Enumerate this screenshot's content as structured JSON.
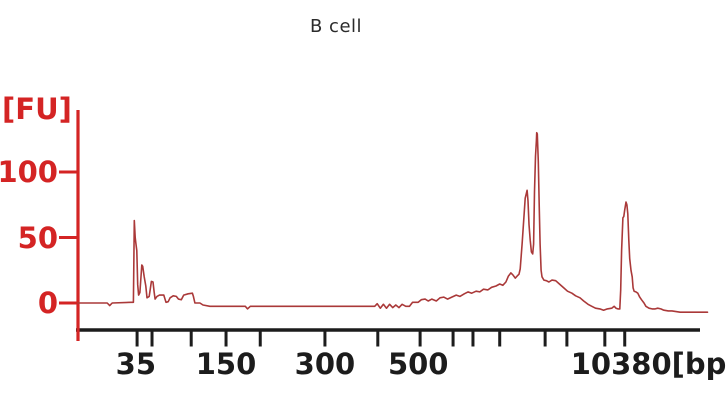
{
  "chart_data": {
    "type": "line",
    "title": "B cell",
    "ylabel": "[FU]",
    "x_axis_unit": "[bp]",
    "ylim": [
      -10,
      140
    ],
    "grid": false,
    "legend": "none",
    "y_ticks": [
      {
        "value": 0,
        "label": "0"
      },
      {
        "value": 50,
        "label": "50"
      },
      {
        "value": 100,
        "label": "100"
      }
    ],
    "x_ticks": [
      {
        "x": 0.095,
        "label": "35",
        "label_x": 0.093
      },
      {
        "x": 0.119
      },
      {
        "x": 0.182
      },
      {
        "x": 0.238,
        "label": "150",
        "label_x": 0.238
      },
      {
        "x": 0.293
      },
      {
        "x": 0.397,
        "label": "300",
        "label_x": 0.397
      },
      {
        "x": 0.482
      },
      {
        "x": 0.55,
        "label": "500",
        "label_x": 0.547
      },
      {
        "x": 0.603
      },
      {
        "x": 0.635
      },
      {
        "x": 0.678
      },
      {
        "x": 0.751
      },
      {
        "x": 0.786
      },
      {
        "x": 0.847
      },
      {
        "x": 0.879,
        "label": "10380[bp]",
        "label_x": 0.928
      }
    ],
    "series": [
      {
        "name": "electropherogram-trace",
        "x_unit": "fraction-of-axis",
        "y_unit": "FU",
        "points": [
          [
            0.0,
            0
          ],
          [
            0.03,
            0
          ],
          [
            0.047,
            0
          ],
          [
            0.051,
            -2
          ],
          [
            0.055,
            0
          ],
          [
            0.085,
            0.5
          ],
          [
            0.089,
            0.5
          ],
          [
            0.0905,
            63
          ],
          [
            0.092,
            50
          ],
          [
            0.093,
            46
          ],
          [
            0.0945,
            40
          ],
          [
            0.096,
            14
          ],
          [
            0.0975,
            6
          ],
          [
            0.0995,
            8
          ],
          [
            0.1025,
            29
          ],
          [
            0.104,
            28
          ],
          [
            0.1065,
            20
          ],
          [
            0.109,
            13
          ],
          [
            0.111,
            4
          ],
          [
            0.1145,
            5
          ],
          [
            0.118,
            16.5
          ],
          [
            0.1205,
            16
          ],
          [
            0.1225,
            8
          ],
          [
            0.124,
            3
          ],
          [
            0.127,
            5
          ],
          [
            0.131,
            6
          ],
          [
            0.138,
            6
          ],
          [
            0.1415,
            0.5
          ],
          [
            0.145,
            1
          ],
          [
            0.148,
            4
          ],
          [
            0.153,
            5.5
          ],
          [
            0.158,
            5
          ],
          [
            0.1615,
            3
          ],
          [
            0.166,
            2.5
          ],
          [
            0.17,
            6
          ],
          [
            0.177,
            7
          ],
          [
            0.184,
            7.5
          ],
          [
            0.1855,
            5
          ],
          [
            0.188,
            0
          ],
          [
            0.196,
            0
          ],
          [
            0.201,
            -1.5
          ],
          [
            0.212,
            -2.5
          ],
          [
            0.269,
            -2.5
          ],
          [
            0.2725,
            -4.5
          ],
          [
            0.277,
            -2.5
          ],
          [
            0.35,
            -2.5
          ],
          [
            0.42,
            -2.5
          ],
          [
            0.477,
            -2.5
          ],
          [
            0.481,
            -0.5
          ],
          [
            0.486,
            -4
          ],
          [
            0.491,
            -1
          ],
          [
            0.496,
            -4
          ],
          [
            0.501,
            -1
          ],
          [
            0.506,
            -3.5
          ],
          [
            0.511,
            -1.5
          ],
          [
            0.516,
            -3.5
          ],
          [
            0.521,
            -1
          ],
          [
            0.527,
            -2.5
          ],
          [
            0.533,
            -2.5
          ],
          [
            0.538,
            0.5
          ],
          [
            0.547,
            0.5
          ],
          [
            0.552,
            2.5
          ],
          [
            0.558,
            3
          ],
          [
            0.563,
            1.5
          ],
          [
            0.569,
            3
          ],
          [
            0.576,
            1.5
          ],
          [
            0.582,
            4
          ],
          [
            0.588,
            4.5
          ],
          [
            0.594,
            3
          ],
          [
            0.601,
            4.5
          ],
          [
            0.608,
            6
          ],
          [
            0.614,
            5
          ],
          [
            0.621,
            7
          ],
          [
            0.627,
            8.5
          ],
          [
            0.633,
            7.5
          ],
          [
            0.64,
            9
          ],
          [
            0.646,
            8.5
          ],
          [
            0.652,
            10.5
          ],
          [
            0.659,
            10
          ],
          [
            0.665,
            12
          ],
          [
            0.672,
            13
          ],
          [
            0.678,
            14.5
          ],
          [
            0.683,
            13.5
          ],
          [
            0.688,
            16
          ],
          [
            0.692,
            20.5
          ],
          [
            0.696,
            23
          ],
          [
            0.699,
            21.5
          ],
          [
            0.703,
            19
          ],
          [
            0.706,
            20.5
          ],
          [
            0.709,
            22
          ],
          [
            0.711,
            26
          ],
          [
            0.714,
            45
          ],
          [
            0.719,
            80
          ],
          [
            0.722,
            86
          ],
          [
            0.7235,
            78
          ],
          [
            0.725,
            60
          ],
          [
            0.727,
            48
          ],
          [
            0.729,
            39
          ],
          [
            0.731,
            37.5
          ],
          [
            0.7325,
            45
          ],
          [
            0.734,
            85
          ],
          [
            0.7355,
            112
          ],
          [
            0.737,
            124
          ],
          [
            0.7375,
            130
          ],
          [
            0.7385,
            129
          ],
          [
            0.74,
            108
          ],
          [
            0.7415,
            75
          ],
          [
            0.743,
            45
          ],
          [
            0.7445,
            25
          ],
          [
            0.746,
            20
          ],
          [
            0.749,
            17.5
          ],
          [
            0.753,
            17
          ],
          [
            0.757,
            16
          ],
          [
            0.762,
            17.5
          ],
          [
            0.768,
            17
          ],
          [
            0.774,
            14.5
          ],
          [
            0.781,
            11.5
          ],
          [
            0.787,
            9
          ],
          [
            0.794,
            7.5
          ],
          [
            0.8,
            5.5
          ],
          [
            0.807,
            4
          ],
          [
            0.813,
            1.5
          ],
          [
            0.82,
            -1
          ],
          [
            0.826,
            -2.5
          ],
          [
            0.832,
            -4
          ],
          [
            0.839,
            -4.5
          ],
          [
            0.845,
            -5.5
          ],
          [
            0.851,
            -4.5
          ],
          [
            0.858,
            -4
          ],
          [
            0.862,
            -2.5
          ],
          [
            0.865,
            -4
          ],
          [
            0.868,
            -4.5
          ],
          [
            0.871,
            -4.5
          ],
          [
            0.8725,
            10
          ],
          [
            0.874,
            40
          ],
          [
            0.876,
            65
          ],
          [
            0.8775,
            66
          ],
          [
            0.879,
            71
          ],
          [
            0.881,
            77
          ],
          [
            0.8825,
            75
          ],
          [
            0.884,
            68
          ],
          [
            0.8855,
            48
          ],
          [
            0.887,
            34
          ],
          [
            0.889,
            25
          ],
          [
            0.891,
            20
          ],
          [
            0.8925,
            11.5
          ],
          [
            0.894,
            9
          ],
          [
            0.897,
            8.5
          ],
          [
            0.9,
            7.5
          ],
          [
            0.903,
            4.5
          ],
          [
            0.906,
            2.5
          ],
          [
            0.91,
            0
          ],
          [
            0.913,
            -2.5
          ],
          [
            0.918,
            -4
          ],
          [
            0.923,
            -4.5
          ],
          [
            0.928,
            -4.5
          ],
          [
            0.932,
            -4
          ],
          [
            0.937,
            -4.5
          ],
          [
            0.942,
            -5.5
          ],
          [
            0.949,
            -6
          ],
          [
            0.955,
            -6
          ],
          [
            0.968,
            -7
          ],
          [
            0.984,
            -7
          ],
          [
            1.0,
            -7
          ],
          [
            1.012,
            -7
          ]
        ]
      }
    ],
    "peaks_of_interest": {
      "lower_marker_fu": 63,
      "peak_18s_fu": 86,
      "peak_28s_fu": 130,
      "right_peak_fu": 77
    },
    "colors": {
      "axis_red": "#d42424",
      "axis_black": "#1c1c1c",
      "trace": "#aa3939",
      "title_text": "#2b2b2b",
      "background": "#ffffff"
    }
  }
}
